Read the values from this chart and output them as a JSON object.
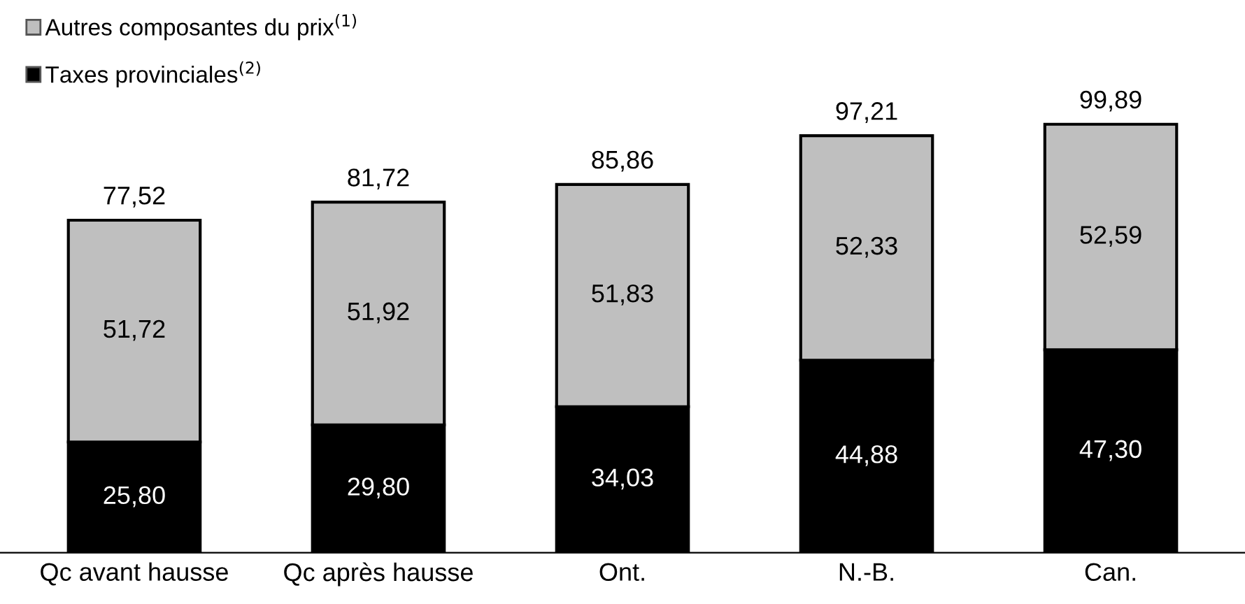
{
  "chart_data": {
    "type": "bar",
    "stacked": true,
    "legend": "top left",
    "categories": [
      "Qc avant hausse",
      "Qc après hausse",
      "Ont.",
      "N.-B.",
      "Can."
    ],
    "series": [
      {
        "name": "Taxes provinciales$^{(2)}$",
        "color": "#000000",
        "values": [
          25.8,
          29.8,
          34.03,
          44.88,
          47.3
        ],
        "value_labels": [
          "25,80",
          "29,80",
          "34,03",
          "44,88",
          "47,30"
        ]
      },
      {
        "name": "Autres composantes du prix$^{(1)}$",
        "color": "#bfbfbf",
        "values": [
          51.72,
          51.92,
          51.83,
          52.33,
          52.59
        ],
        "value_labels": [
          "51,72",
          "51,92",
          "51,83",
          "52,33",
          "52,59"
        ]
      }
    ],
    "totals": [
      "77,52",
      "81,72",
      "85,86",
      "97,21",
      "99,89"
    ]
  }
}
